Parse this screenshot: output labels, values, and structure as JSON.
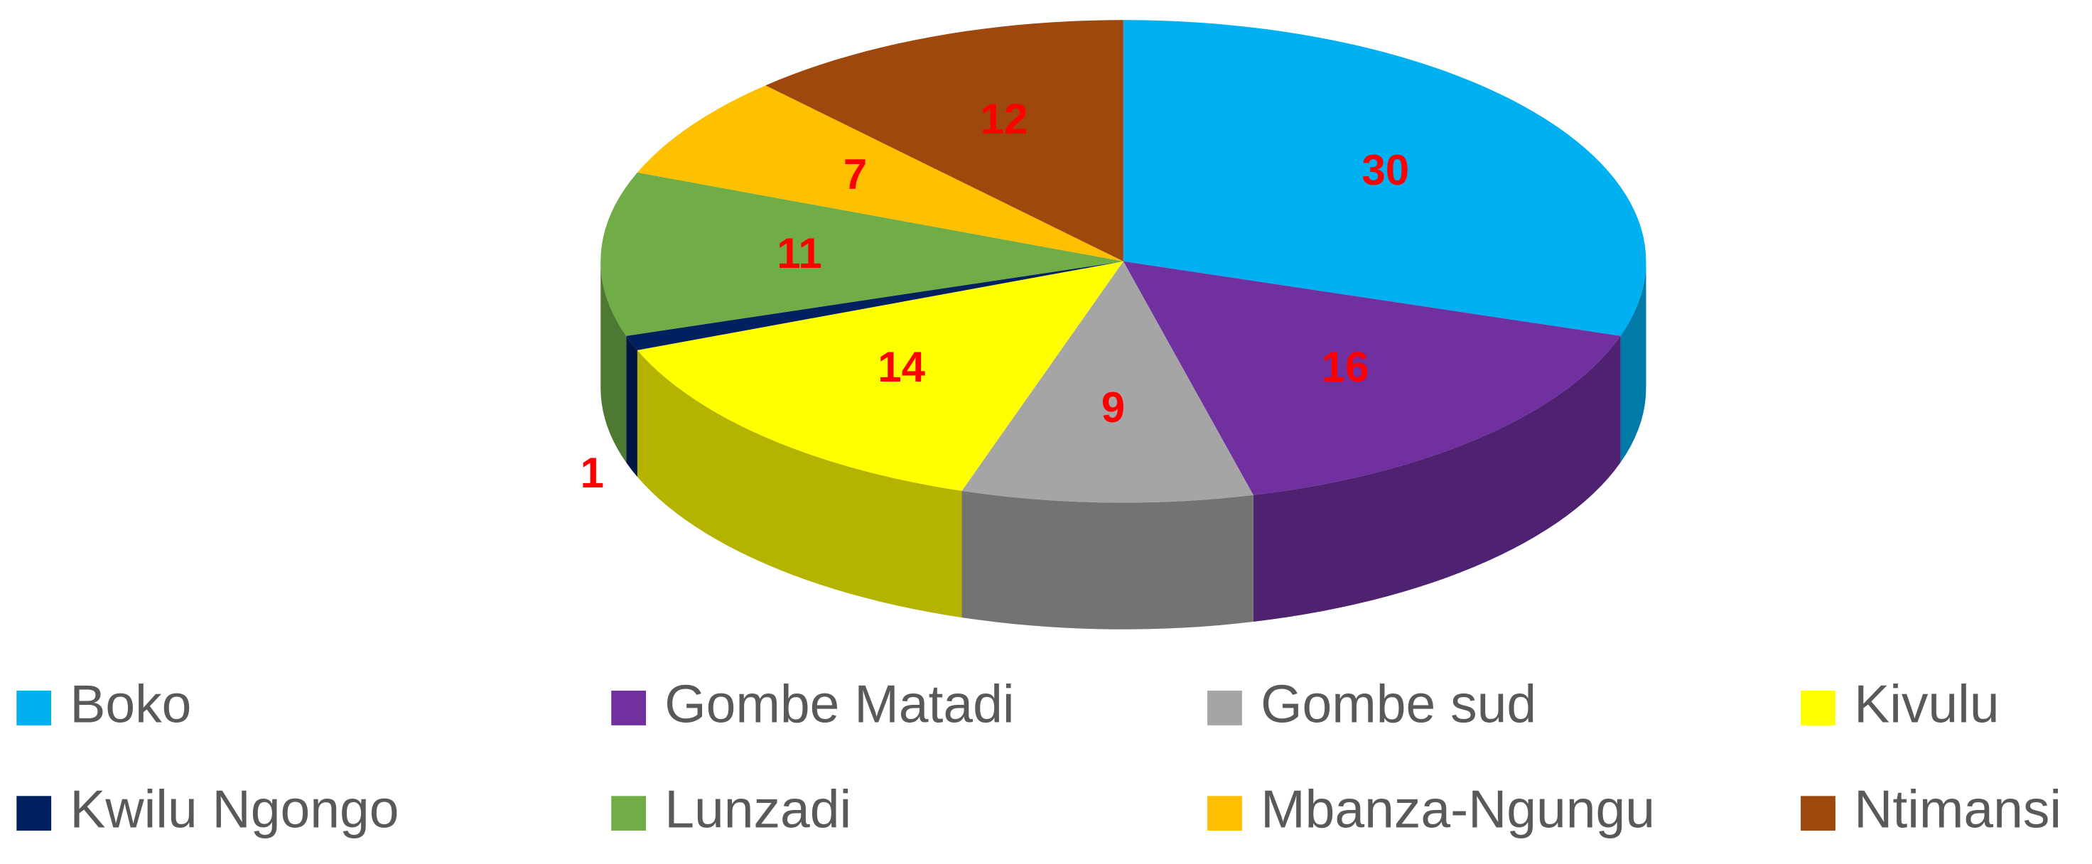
{
  "chart_data": {
    "type": "pie3d",
    "categories": [
      "Boko",
      "Gombe Matadi",
      "Gombe sud",
      "Kivulu",
      "Kwilu  Ngongo",
      "Lunzadi",
      "Mbanza-Ngungu",
      "Ntimansi"
    ],
    "values": [
      30,
      16,
      9,
      14,
      1,
      11,
      7,
      12
    ],
    "colors": [
      "#00b0f0",
      "#7030a0",
      "#a5a5a5",
      "#ffff00",
      "#002060",
      "#70ad47",
      "#ffc000",
      "#9e480e"
    ],
    "legend": "bottom"
  }
}
